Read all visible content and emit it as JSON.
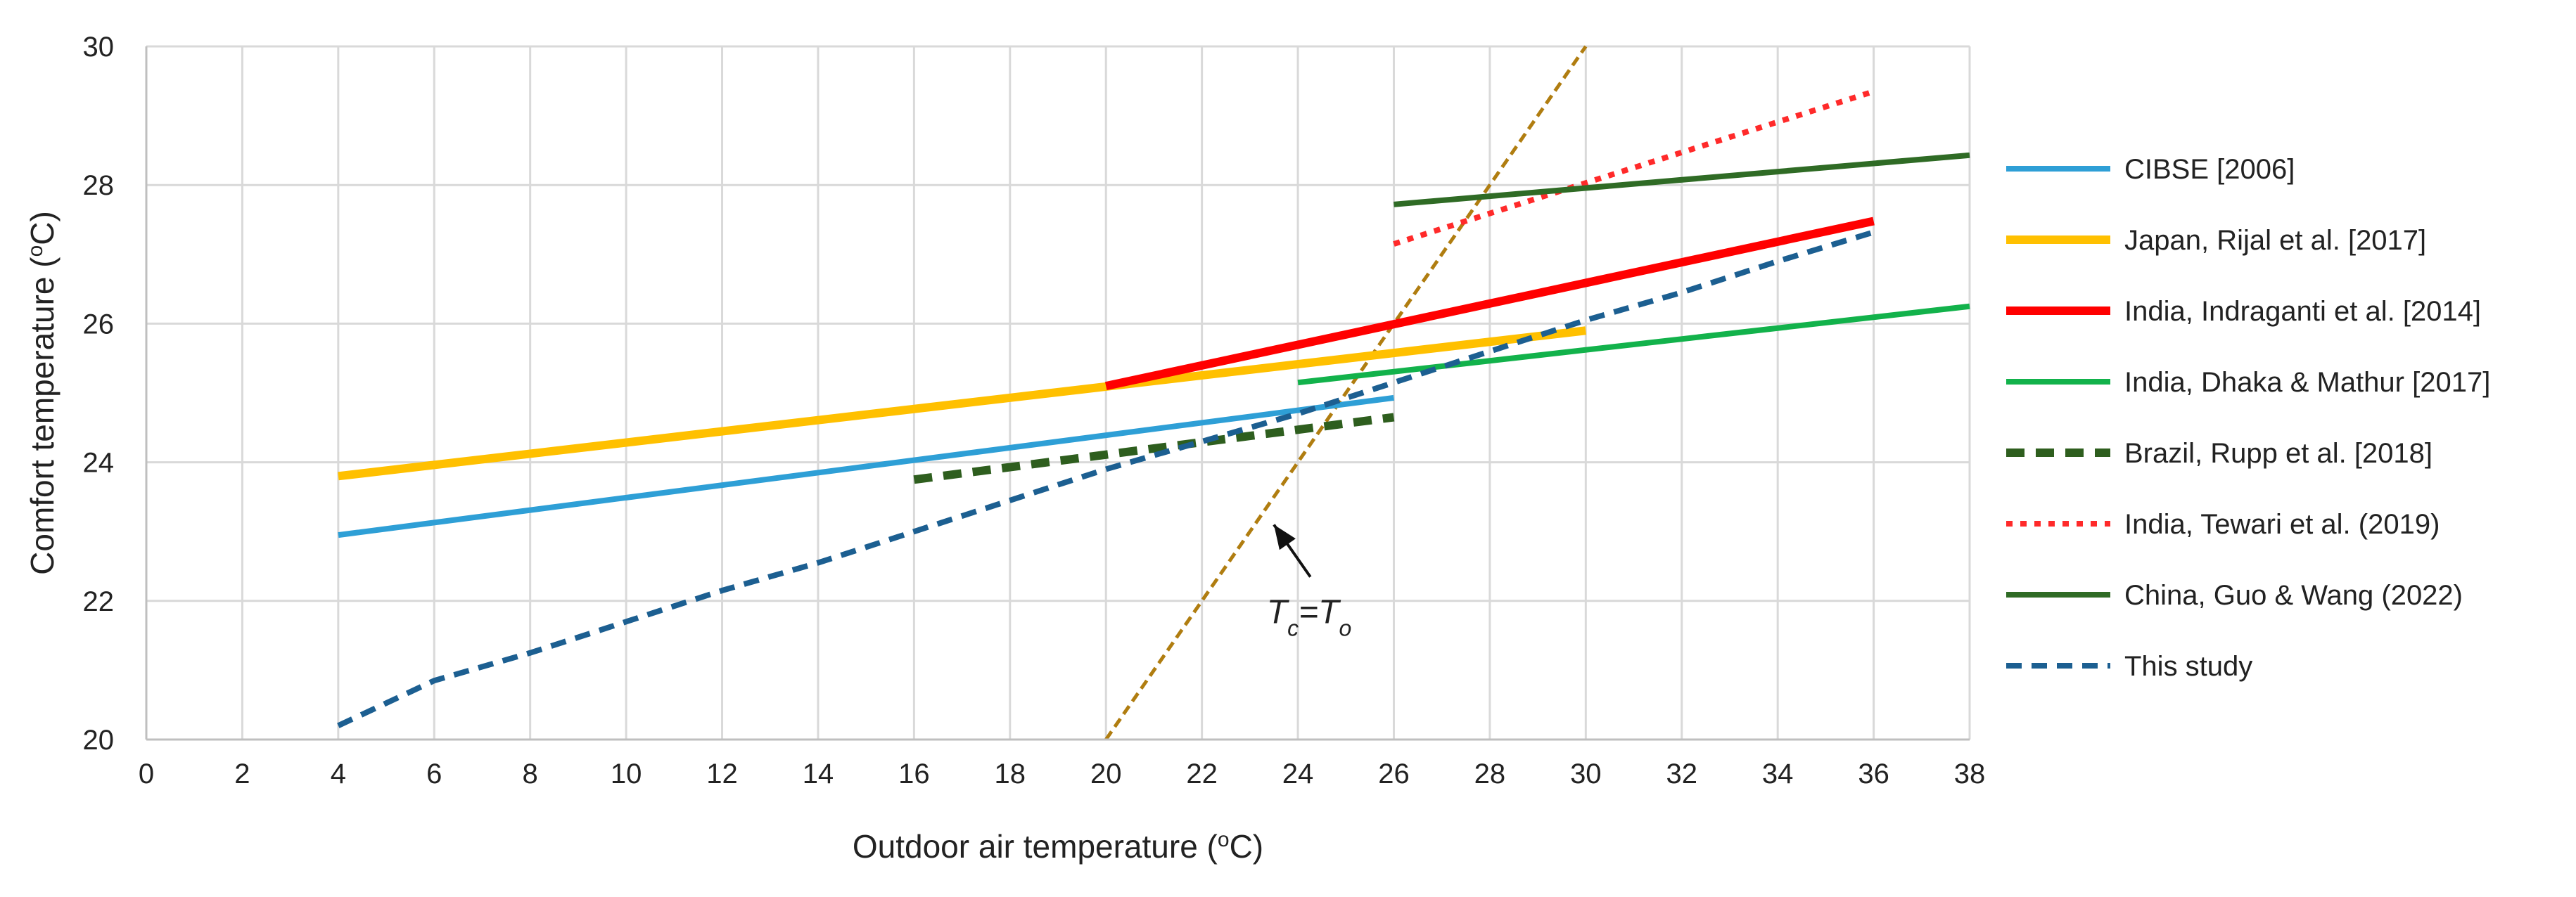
{
  "chart_data": {
    "type": "line",
    "title": "",
    "xlabel": "Outdoor air temperature (",
    "xlabel_sup": "o",
    "xlabel_tail": "C)",
    "ylabel": "Comfort temperature (",
    "ylabel_sup": "o",
    "ylabel_tail": "C)",
    "xlim": [
      0,
      38
    ],
    "ylim": [
      20,
      30
    ],
    "xticks": [
      "0",
      "2",
      "4",
      "6",
      "8",
      "10",
      "12",
      "14",
      "16",
      "18",
      "20",
      "22",
      "24",
      "26",
      "28",
      "30",
      "32",
      "34",
      "36",
      "38"
    ],
    "yticks": [
      "20",
      "22",
      "24",
      "26",
      "28",
      "30"
    ],
    "grid": true,
    "legend_position": "right",
    "series": [
      {
        "name": "CIBSE [2006]",
        "color": "#2e9fd6",
        "style": "solid",
        "weight": "normal",
        "points": [
          [
            4,
            22.95
          ],
          [
            26,
            24.93
          ]
        ]
      },
      {
        "name": "Japan, Rijal et al. [2017]",
        "color": "#ffc000",
        "style": "solid",
        "weight": "thick",
        "points": [
          [
            4,
            23.8
          ],
          [
            30,
            25.9
          ]
        ]
      },
      {
        "name": "India, Indraganti et al. [2014]",
        "color": "#ff0000",
        "style": "solid",
        "weight": "thick",
        "points": [
          [
            20,
            25.1
          ],
          [
            36,
            27.48
          ]
        ]
      },
      {
        "name": "India, Dhaka & Mathur [2017]",
        "color": "#12b24b",
        "style": "solid",
        "weight": "normal",
        "points": [
          [
            24,
            25.15
          ],
          [
            38,
            26.25
          ]
        ]
      },
      {
        "name": "Brazil, Rupp et al. [2018]",
        "color": "#2e5e1e",
        "style": "dashed",
        "weight": "thick",
        "points": [
          [
            16,
            23.75
          ],
          [
            26,
            24.65
          ]
        ]
      },
      {
        "name": "India, Tewari et al. (2019)",
        "color": "#ff2a2a",
        "style": "dotted",
        "weight": "normal",
        "points": [
          [
            26,
            27.15
          ],
          [
            36,
            29.35
          ]
        ]
      },
      {
        "name": "China, Guo & Wang (2022)",
        "color": "#2f6b25",
        "style": "solid",
        "weight": "normal",
        "points": [
          [
            26,
            27.72
          ],
          [
            38,
            28.43
          ]
        ]
      },
      {
        "name": "This study",
        "color": "#1c5f91",
        "style": "dashed",
        "weight": "normal",
        "points": [
          [
            4,
            20.2
          ],
          [
            6,
            20.85
          ],
          [
            8,
            21.25
          ],
          [
            10,
            21.7
          ],
          [
            12,
            22.15
          ],
          [
            14,
            22.55
          ],
          [
            16,
            23.0
          ],
          [
            18,
            23.45
          ],
          [
            20,
            23.9
          ],
          [
            22,
            24.3
          ],
          [
            24,
            24.7
          ],
          [
            26,
            25.15
          ],
          [
            28,
            25.6
          ],
          [
            30,
            26.05
          ],
          [
            32,
            26.45
          ],
          [
            34,
            26.9
          ],
          [
            36,
            27.32
          ]
        ]
      }
    ],
    "reference_line": {
      "name": "Tc=To",
      "color": "#b07d10",
      "style": "dashed",
      "points": [
        [
          20,
          20
        ],
        [
          30,
          30
        ]
      ]
    },
    "annotation": {
      "label_main": "T",
      "label_sub_c": "c",
      "label_eq": "=T",
      "label_sub_o": "o",
      "points_to": [
        23.5,
        23.1
      ],
      "text_at": [
        24.7,
        21.9
      ]
    }
  }
}
